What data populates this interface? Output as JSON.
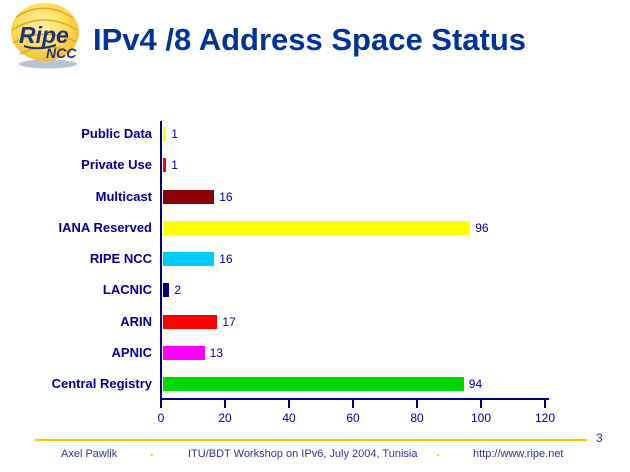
{
  "logo": {
    "ripe": "Ripe",
    "ncc": "NCC"
  },
  "header": {
    "title": "IPv4 /8 Address Space Status"
  },
  "chart_data": {
    "type": "bar",
    "orientation": "horizontal",
    "title": "IPv4 /8 Address Space Status",
    "categories": [
      "Public Data",
      "Private Use",
      "Multicast",
      "IANA Reserved",
      "RIPE NCC",
      "LACNIC",
      "ARIN",
      "APNIC",
      "Central Registry"
    ],
    "values": [
      1,
      1,
      16,
      96,
      16,
      2,
      17,
      13,
      94
    ],
    "bar_colors": [
      "#FFFF00",
      "#FF0000",
      "#8B0000",
      "#FFFF00",
      "#00CCFF",
      "#000080",
      "#FF0000",
      "#FF00FF",
      "#00D900"
    ],
    "value_labels": [
      "1",
      "1",
      "16",
      "96",
      "16",
      "2",
      "17",
      "13",
      "94"
    ],
    "xlabel": "",
    "ylabel": "",
    "xlim": [
      0,
      120
    ],
    "xticks": [
      0,
      20,
      40,
      60,
      80,
      100,
      120
    ],
    "grid": false,
    "legend": false
  },
  "footer": {
    "author": "Axel Pawlik",
    "dot": ".",
    "event": "ITU/BDT Workshop on IPv6, July 2004, Tunisia",
    "url": "http://www.ripe.net",
    "page_number": "3"
  },
  "colors": {
    "title_blue": "#003399",
    "category_label_blue": "#000099",
    "axis_navy": "#000080",
    "footer_blue": "#333399",
    "accent_yellow": "#FFCC00"
  }
}
